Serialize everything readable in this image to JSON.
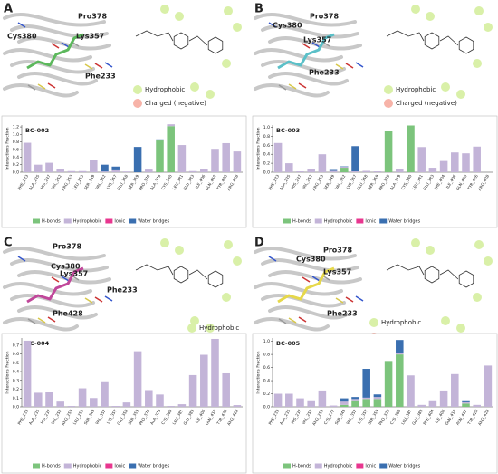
{
  "panels": [
    {
      "letter": "A",
      "residues": [
        "Cys380",
        "Pro378",
        "Lys357",
        "Phe233"
      ],
      "interaction_legend": [
        "Hydrophobic",
        "Charged (negative)"
      ],
      "ligand_color": "#5cb85c"
    },
    {
      "letter": "B",
      "residues": [
        "Cys380",
        "Pro378",
        "Lys357",
        "Phe233"
      ],
      "interaction_legend": [
        "Hydrophobic",
        "Charged (negative)"
      ],
      "ligand_color": "#5bc0c8"
    },
    {
      "letter": "C",
      "residues": [
        "Pro378",
        "Cys380",
        "Lys357",
        "Phe233",
        "Phe428"
      ],
      "interaction_legend": [
        "Hydrophobic"
      ],
      "ligand_color": "#c0479a"
    },
    {
      "letter": "D",
      "residues": [
        "Pro378",
        "Cys380",
        "Lys357",
        "Phe233"
      ],
      "interaction_legend": [
        "Hydrophobic",
        "Charged (negative)"
      ],
      "ligand_color": "#e6d84a"
    }
  ],
  "chart_data": [
    {
      "type": "bar",
      "stacked": true,
      "title": "BC-002",
      "ylabel": "Interactions Fraction",
      "categories": [
        "PHE_233",
        "ALA_235",
        "HIS_237",
        "VAL_252",
        "ARG_253",
        "LEU_255",
        "SER_349",
        "VAL_352",
        "LYS_357",
        "GLU_358",
        "SER_359",
        "PRO_378",
        "ALA_379",
        "CYS_380",
        "LEU_381",
        "GLU_383",
        "ILE_406",
        "GLN_410",
        "TYR_426",
        "ARG_428"
      ],
      "series": [
        {
          "name": "H-bonds",
          "color": "#7cc47c",
          "values": [
            0,
            0,
            0,
            0,
            0,
            0,
            0,
            0,
            0,
            0,
            0,
            0,
            0.84,
            1.22,
            0,
            0,
            0,
            0,
            0,
            0
          ]
        },
        {
          "name": "Hydrophobic",
          "color": "#c3b4d8",
          "values": [
            0.78,
            0.2,
            0.25,
            0.08,
            0.03,
            0.03,
            0.33,
            0.02,
            0.05,
            0.02,
            0,
            0.07,
            0,
            0.05,
            0.72,
            0.03,
            0.08,
            0.62,
            0.77,
            0.55
          ]
        },
        {
          "name": "Ionic",
          "color": "#e8368f",
          "values": [
            0,
            0,
            0,
            0,
            0,
            0,
            0,
            0,
            0,
            0,
            0,
            0,
            0,
            0,
            0,
            0,
            0,
            0,
            0,
            0
          ]
        },
        {
          "name": "Water bridges",
          "color": "#3a6fb0",
          "values": [
            0,
            0,
            0,
            0,
            0,
            0,
            0,
            0.18,
            0.1,
            0,
            0.67,
            0,
            0.03,
            0,
            0,
            0,
            0,
            0,
            0,
            0
          ]
        }
      ],
      "ylim": [
        0,
        1.25
      ],
      "yticks": [
        {
          "value": 0,
          "label": "0.0"
        },
        0.2,
        0.4,
        0.6,
        0.8,
        {
          "value": 1,
          "label": "1.0"
        },
        1.2
      ]
    },
    {
      "type": "bar",
      "stacked": true,
      "title": "BC-003",
      "ylabel": "Interactions Fraction",
      "categories": [
        "PHE_233",
        "ALA_235",
        "HIS_237",
        "VAL_252",
        "ARG_253",
        "SER_349",
        "VAL_352",
        "LYS_357",
        "GLU_358",
        "SER_359",
        "PRO_378",
        "ALA_379",
        "CYS_380",
        "LEU_381",
        "GLU_383",
        "PHE_404",
        "ILE_406",
        "GLN_410",
        "TYR_426",
        "ARG_428"
      ],
      "series": [
        {
          "name": "H-bonds",
          "color": "#7cc47c",
          "values": [
            0,
            0,
            0,
            0,
            0,
            0,
            0.1,
            0,
            0,
            0,
            0.92,
            0,
            1.04,
            0,
            0,
            0,
            0,
            0,
            0,
            0
          ]
        },
        {
          "name": "Hydrophobic",
          "color": "#c3b4d8",
          "values": [
            0.65,
            0.2,
            0.02,
            0.08,
            0.4,
            0.03,
            0.02,
            0.02,
            0.03,
            0.02,
            0,
            0.08,
            0,
            0.56,
            0.1,
            0.25,
            0.44,
            0.42,
            0.57,
            0
          ]
        },
        {
          "name": "Ionic",
          "color": "#e8368f",
          "values": [
            0,
            0,
            0,
            0,
            0,
            0,
            0,
            0,
            0,
            0,
            0,
            0,
            0,
            0,
            0,
            0,
            0,
            0,
            0,
            0
          ]
        },
        {
          "name": "Water bridges",
          "color": "#3a6fb0",
          "values": [
            0,
            0,
            0,
            0,
            0,
            0.02,
            0.01,
            0.56,
            0,
            0,
            0,
            0,
            0,
            0,
            0,
            0,
            0,
            0,
            0,
            0
          ]
        }
      ],
      "ylim": [
        0,
        1.05
      ],
      "yticks": [
        {
          "value": 0,
          "label": "0.0"
        },
        0.2,
        0.4,
        0.6,
        0.8,
        {
          "value": 1,
          "label": "1.0"
        }
      ]
    },
    {
      "type": "bar",
      "stacked": true,
      "title": "BC-004",
      "ylabel": "Interactions Fraction",
      "categories": [
        "PHE_233",
        "ALA_235",
        "HIS_237",
        "VAL_252",
        "ARG_253",
        "LEU_255",
        "SER_349",
        "VAL_352",
        "LYS_357",
        "GLU_358",
        "SER_359",
        "PRO_378",
        "ALA_379",
        "CYS_380",
        "LEU_381",
        "GLU_383",
        "ILE_406",
        "GLN_410",
        "TYR_426",
        "ARG_428"
      ],
      "series": [
        {
          "name": "H-bonds",
          "color": "#7cc47c",
          "values": [
            0,
            0,
            0,
            0,
            0,
            0,
            0,
            0,
            0,
            0,
            0,
            0,
            0,
            0,
            0,
            0,
            0,
            0,
            0,
            0
          ]
        },
        {
          "name": "Hydrophobic",
          "color": "#c3b4d8",
          "values": [
            0.75,
            0.16,
            0.17,
            0.06,
            0.01,
            0.21,
            0.1,
            0.29,
            0.01,
            0.05,
            0.63,
            0.19,
            0.14,
            0.01,
            0.03,
            0.36,
            0.59,
            0.77,
            0.38,
            0.02
          ]
        },
        {
          "name": "Ionic",
          "color": "#e8368f",
          "values": [
            0,
            0,
            0,
            0,
            0,
            0,
            0,
            0,
            0,
            0,
            0,
            0,
            0,
            0,
            0,
            0,
            0,
            0,
            0,
            0
          ]
        },
        {
          "name": "Water bridges",
          "color": "#3a6fb0",
          "values": [
            0,
            0,
            0,
            0,
            0,
            0,
            0,
            0,
            0,
            0,
            0,
            0,
            0,
            0,
            0,
            0,
            0,
            0,
            0,
            0
          ]
        }
      ],
      "ylim": [
        0,
        0.78
      ],
      "yticks": [
        {
          "value": 0,
          "label": "0.0"
        },
        0.1,
        0.2,
        0.3,
        0.4,
        0.5,
        0.6,
        0.7
      ]
    },
    {
      "type": "bar",
      "stacked": true,
      "title": "BC-005",
      "ylabel": "Interactions Fraction",
      "categories": [
        "PHE_233",
        "ALA_235",
        "HIS_237",
        "VAL_252",
        "ARG_253",
        "CYS_272",
        "SER_349",
        "VAL_352",
        "LYS_357",
        "SER_359",
        "PRO_378",
        "CYS_380",
        "LEU_381",
        "GLU_383",
        "PHE_404",
        "ILE_406",
        "GLN_410",
        "ASN_412",
        "TYR_426",
        "ARG_428"
      ],
      "series": [
        {
          "name": "H-bonds",
          "color": "#7cc47c",
          "values": [
            0,
            0,
            0,
            0,
            0,
            0,
            0.03,
            0.1,
            0.12,
            0.12,
            0.7,
            0.8,
            0,
            0,
            0,
            0,
            0,
            0.05,
            0,
            0
          ]
        },
        {
          "name": "Hydrophobic",
          "color": "#c3b4d8",
          "values": [
            0.2,
            0.2,
            0.13,
            0.1,
            0.25,
            0.02,
            0.05,
            0.02,
            0.02,
            0.03,
            0,
            0.02,
            0.48,
            0.03,
            0.1,
            0.25,
            0.5,
            0.02,
            0.03,
            0.63
          ]
        },
        {
          "name": "Ionic",
          "color": "#e8368f",
          "values": [
            0,
            0,
            0,
            0,
            0,
            0,
            0,
            0,
            0,
            0,
            0,
            0,
            0,
            0,
            0,
            0,
            0,
            0,
            0,
            0
          ]
        },
        {
          "name": "Water bridges",
          "color": "#3a6fb0",
          "values": [
            0,
            0,
            0,
            0,
            0,
            0,
            0.05,
            0.03,
            0.44,
            0.04,
            0,
            0.2,
            0,
            0,
            0,
            0,
            0,
            0.03,
            0,
            0
          ]
        }
      ],
      "ylim": [
        0,
        1.05
      ],
      "yticks": [
        {
          "value": 0,
          "label": "0.0"
        },
        0.2,
        0.4,
        0.6,
        0.8,
        {
          "value": 1,
          "label": "1.0"
        }
      ]
    }
  ]
}
